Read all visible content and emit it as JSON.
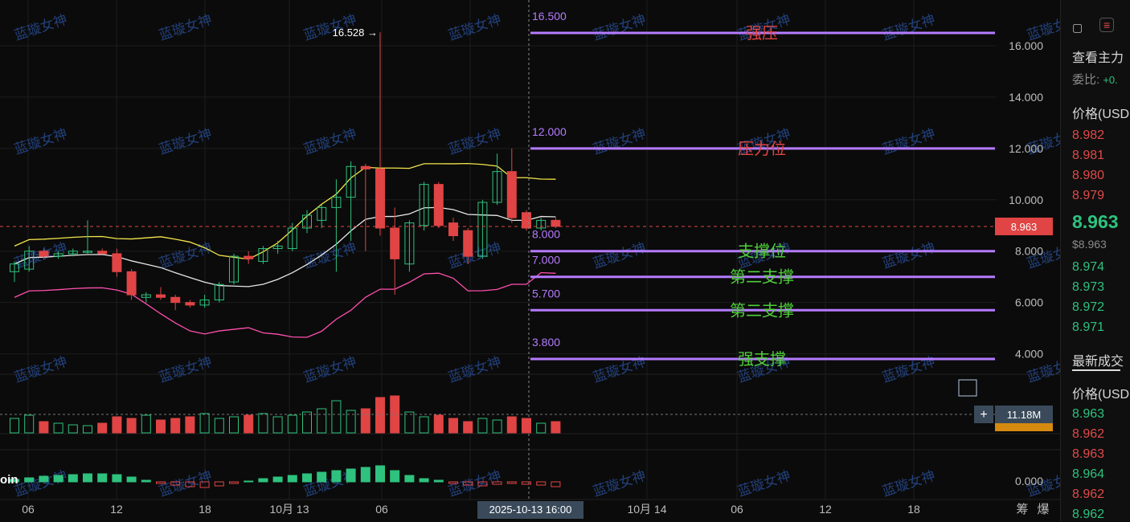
{
  "watermark": "蓝璇女神",
  "colors": {
    "up": "#2ec27e",
    "down": "#e04444",
    "level": "#b57bff",
    "ma_yellow": "#f4e54a",
    "ma_white": "#e6e6e6",
    "band_pink": "#ff4fae"
  },
  "chart_data": {
    "type": "candlestick",
    "x_ticks": [
      "06",
      "12",
      "18",
      "10月 13",
      "06",
      "12",
      "10月 14",
      "06",
      "12",
      "18"
    ],
    "crosshair_label": "2025-10-13 16:00",
    "y_ticks": [
      "16.000",
      "14.000",
      "12.000",
      "10.000",
      "8.000",
      "6.000",
      "4.000"
    ],
    "ylim": [
      2.6,
      17.2
    ],
    "current_price": "8.963",
    "high_label": "16.528 →",
    "candles": [
      {
        "o": 7.2,
        "h": 7.6,
        "l": 6.8,
        "c": 7.5
      },
      {
        "o": 7.3,
        "h": 8.2,
        "l": 7.2,
        "c": 8.0
      },
      {
        "o": 8.0,
        "h": 8.1,
        "l": 7.7,
        "c": 7.8
      },
      {
        "o": 7.8,
        "h": 8.0,
        "l": 7.7,
        "c": 7.9
      },
      {
        "o": 7.9,
        "h": 8.1,
        "l": 7.8,
        "c": 8.0
      },
      {
        "o": 8.0,
        "h": 9.2,
        "l": 7.9,
        "c": 8.0
      },
      {
        "o": 8.0,
        "h": 8.1,
        "l": 7.9,
        "c": 7.9
      },
      {
        "o": 7.9,
        "h": 8.1,
        "l": 7.0,
        "c": 7.2
      },
      {
        "o": 7.2,
        "h": 7.3,
        "l": 6.1,
        "c": 6.3
      },
      {
        "o": 6.2,
        "h": 6.4,
        "l": 6.0,
        "c": 6.3
      },
      {
        "o": 6.3,
        "h": 6.6,
        "l": 6.1,
        "c": 6.2
      },
      {
        "o": 6.2,
        "h": 6.3,
        "l": 5.7,
        "c": 6.0
      },
      {
        "o": 6.0,
        "h": 6.1,
        "l": 5.8,
        "c": 5.9
      },
      {
        "o": 5.9,
        "h": 6.3,
        "l": 5.8,
        "c": 6.1
      },
      {
        "o": 6.1,
        "h": 6.8,
        "l": 6.0,
        "c": 6.7
      },
      {
        "o": 6.8,
        "h": 7.9,
        "l": 6.7,
        "c": 7.8
      },
      {
        "o": 7.8,
        "h": 8.0,
        "l": 7.5,
        "c": 7.7
      },
      {
        "o": 7.6,
        "h": 8.2,
        "l": 7.5,
        "c": 8.1
      },
      {
        "o": 8.1,
        "h": 8.4,
        "l": 7.9,
        "c": 8.2
      },
      {
        "o": 8.1,
        "h": 9.1,
        "l": 8.0,
        "c": 8.9
      },
      {
        "o": 8.9,
        "h": 9.6,
        "l": 8.7,
        "c": 9.4
      },
      {
        "o": 9.2,
        "h": 9.8,
        "l": 8.9,
        "c": 9.7
      },
      {
        "o": 9.7,
        "h": 10.8,
        "l": 7.2,
        "c": 10.1
      },
      {
        "o": 10.1,
        "h": 11.5,
        "l": 8.4,
        "c": 11.3
      },
      {
        "o": 11.3,
        "h": 11.4,
        "l": 8.0,
        "c": 11.2
      },
      {
        "o": 11.2,
        "h": 16.528,
        "l": 8.6,
        "c": 8.9
      },
      {
        "o": 8.9,
        "h": 9.7,
        "l": 6.3,
        "c": 7.7
      },
      {
        "o": 7.5,
        "h": 9.2,
        "l": 7.2,
        "c": 9.1
      },
      {
        "o": 9.0,
        "h": 10.7,
        "l": 8.8,
        "c": 10.6
      },
      {
        "o": 10.6,
        "h": 10.7,
        "l": 8.9,
        "c": 9.0
      },
      {
        "o": 9.1,
        "h": 9.3,
        "l": 8.4,
        "c": 8.6
      },
      {
        "o": 8.8,
        "h": 8.9,
        "l": 7.5,
        "c": 7.8
      },
      {
        "o": 7.8,
        "h": 10.0,
        "l": 7.7,
        "c": 9.9
      },
      {
        "o": 9.9,
        "h": 11.8,
        "l": 9.8,
        "c": 11.1
      },
      {
        "o": 11.1,
        "h": 12.0,
        "l": 9.1,
        "c": 9.3
      },
      {
        "o": 9.5,
        "h": 9.6,
        "l": 8.8,
        "c": 8.9
      },
      {
        "o": 8.9,
        "h": 9.3,
        "l": 8.8,
        "c": 9.2
      },
      {
        "o": 9.2,
        "h": 9.3,
        "l": 8.9,
        "c": 8.963
      }
    ],
    "level_lines": [
      {
        "value": 16.5,
        "price_label": "16.500",
        "name": "强压",
        "name_color": "#e04444"
      },
      {
        "value": 12.0,
        "price_label": "12.000",
        "name": "压力位",
        "name_color": "#e04444"
      },
      {
        "value": 8.0,
        "price_label": "8.000",
        "name": "支撑位",
        "name_color": "#4fcf3a"
      },
      {
        "value": 7.0,
        "price_label": "7.000",
        "name": "第二支撑",
        "name_color": "#4fcf3a"
      },
      {
        "value": 5.7,
        "price_label": "5.700",
        "name": "第二支撑",
        "name_color": "#4fcf3a"
      },
      {
        "value": 3.8,
        "price_label": "3.800",
        "name": "强支撑",
        "name_color": "#4fcf3a"
      }
    ],
    "volume_label": "11.18M",
    "oscillator_label": "0.000",
    "oscillator_name": "oin",
    "bottom_right": [
      "筹",
      "爆"
    ]
  },
  "panel": {
    "title": "查看主力",
    "ratio_label": "委比:",
    "ratio_value": "+0.",
    "price_header": "价格(USD",
    "asks": [
      "8.982",
      "8.981",
      "8.980",
      "8.979"
    ],
    "last": "8.963",
    "last_usd": "$8.963",
    "bids": [
      "8.974",
      "8.973",
      "8.972",
      "8.971"
    ],
    "trades_title": "最新成交",
    "trades_header": "价格(USD",
    "trades": [
      {
        "p": "8.963",
        "side": "buy"
      },
      {
        "p": "8.962",
        "side": "sell"
      },
      {
        "p": "8.963",
        "side": "sell"
      },
      {
        "p": "8.964",
        "side": "buy"
      },
      {
        "p": "8.962",
        "side": "sell"
      },
      {
        "p": "8.962",
        "side": "buy"
      }
    ]
  }
}
